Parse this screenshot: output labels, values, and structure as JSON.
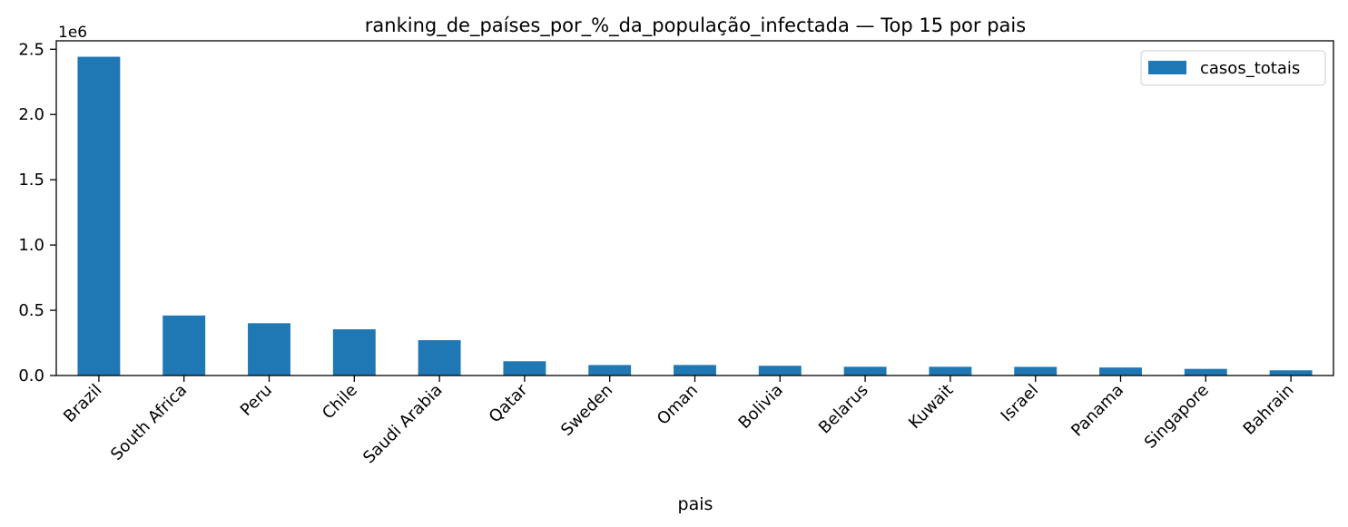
{
  "chart_data": {
    "type": "bar",
    "title": "ranking_de_países_por_%_da_população_infectada — Top 15 por pais",
    "xlabel": "pais",
    "ylabel": "",
    "y_offset_label": "1e6",
    "categories": [
      "Brazil",
      "South Africa",
      "Peru",
      "Chile",
      "Saudi Arabia",
      "Qatar",
      "Sweden",
      "Oman",
      "Bolivia",
      "Belarus",
      "Kuwait",
      "Israel",
      "Panama",
      "Singapore",
      "Bahrain"
    ],
    "series": [
      {
        "name": "casos_totais",
        "values": [
          2442375,
          459761,
          400683,
          354219,
          270831,
          109305,
          80422,
          80713,
          74605,
          67132,
          66957,
          66393,
          61442,
          50838,
          40070
        ],
        "color": "#1f77b4"
      }
    ],
    "ylim": [
      0,
      2564494
    ],
    "yticks": [
      0,
      0.5,
      1.0,
      1.5,
      2.0,
      2.5
    ],
    "ytick_labels": [
      "0.0",
      "0.5",
      "1.0",
      "1.5",
      "2.0",
      "2.5"
    ],
    "ytick_scale": 1000000,
    "grid": false,
    "legend_position": "top-right"
  }
}
